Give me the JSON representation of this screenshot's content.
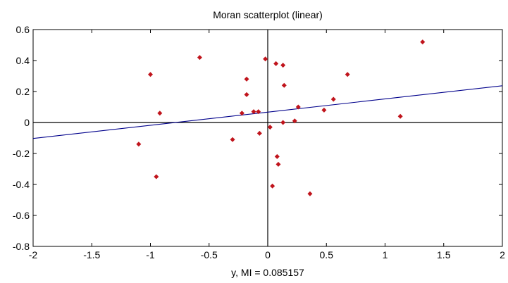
{
  "chart_data": {
    "type": "scatter",
    "title": "Moran scatterplot (linear)",
    "xlabel": "y,  MI = 0.085157",
    "ylabel": "",
    "xlim": [
      -2,
      2
    ],
    "ylim": [
      -0.8,
      0.6
    ],
    "x_ticks": [
      "-2",
      "-1.5",
      "-1",
      "-0.5",
      "0",
      "0.5",
      "1",
      "1.5",
      "2"
    ],
    "y_ticks": [
      "0.6",
      "0.4",
      "0.2",
      "0",
      "-0.2",
      "-0.4",
      "-0.6",
      "-0.8"
    ],
    "grid": false,
    "colors": {
      "points": "#c0141c",
      "fit_line": "#00008b",
      "axes": "#000000"
    },
    "points": [
      {
        "x": -1.1,
        "y": -0.14
      },
      {
        "x": -1.0,
        "y": 0.31
      },
      {
        "x": -0.95,
        "y": -0.35
      },
      {
        "x": -0.92,
        "y": 0.06
      },
      {
        "x": -0.58,
        "y": 0.42
      },
      {
        "x": -0.3,
        "y": -0.11
      },
      {
        "x": -0.22,
        "y": 0.06
      },
      {
        "x": -0.18,
        "y": 0.28
      },
      {
        "x": -0.18,
        "y": 0.18
      },
      {
        "x": -0.12,
        "y": 0.07
      },
      {
        "x": -0.08,
        "y": 0.07
      },
      {
        "x": -0.07,
        "y": -0.07
      },
      {
        "x": -0.02,
        "y": 0.41
      },
      {
        "x": 0.02,
        "y": -0.03
      },
      {
        "x": 0.04,
        "y": -0.41
      },
      {
        "x": 0.07,
        "y": 0.38
      },
      {
        "x": 0.08,
        "y": -0.22
      },
      {
        "x": 0.09,
        "y": -0.27
      },
      {
        "x": 0.13,
        "y": 0.37
      },
      {
        "x": 0.13,
        "y": 0.0
      },
      {
        "x": 0.14,
        "y": 0.24
      },
      {
        "x": 0.23,
        "y": 0.01
      },
      {
        "x": 0.26,
        "y": 0.1
      },
      {
        "x": 0.36,
        "y": -0.46
      },
      {
        "x": 0.48,
        "y": 0.08
      },
      {
        "x": 0.56,
        "y": 0.15
      },
      {
        "x": 0.68,
        "y": 0.31
      },
      {
        "x": 1.13,
        "y": 0.04
      },
      {
        "x": 1.32,
        "y": 0.52
      }
    ],
    "fit_line": {
      "slope": 0.085157,
      "intercept": 0.067
    }
  }
}
